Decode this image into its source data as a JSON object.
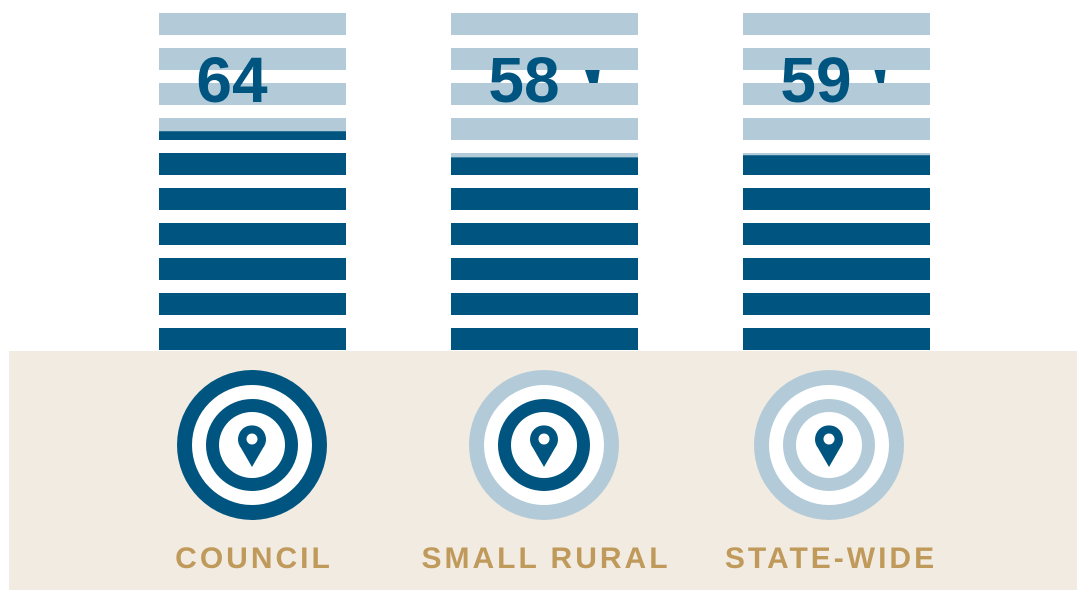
{
  "chart_data": {
    "type": "bar",
    "categories": [
      "COUNCIL",
      "SMALL RURAL",
      "STATE-WIDE"
    ],
    "values": [
      64,
      58,
      59
    ],
    "color": "#005580",
    "base_color": "#b3cbd8",
    "ylim": [
      0,
      100
    ]
  }
}
